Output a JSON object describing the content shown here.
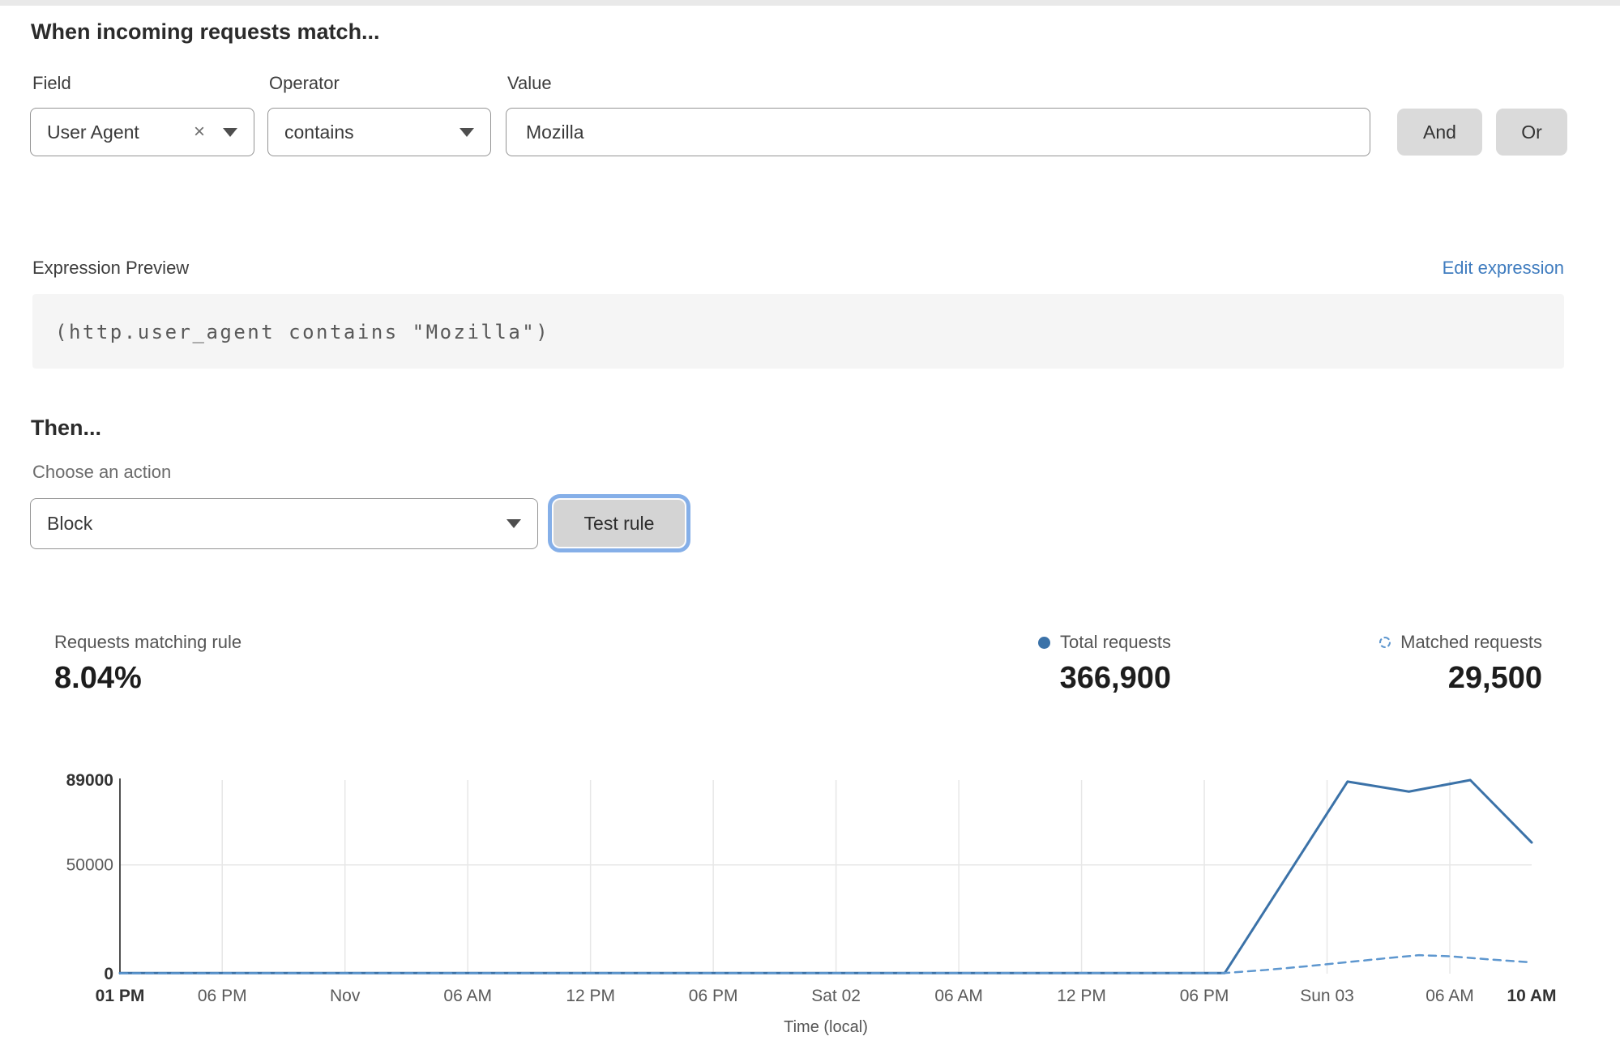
{
  "rule_builder": {
    "heading": "When incoming requests match...",
    "field": {
      "label": "Field",
      "value": "User Agent"
    },
    "operator": {
      "label": "Operator",
      "value": "contains"
    },
    "value": {
      "label": "Value",
      "value": "Mozilla"
    },
    "and_label": "And",
    "or_label": "Or"
  },
  "expression": {
    "label": "Expression Preview",
    "edit_link": "Edit expression",
    "code": "(http.user_agent contains \"Mozilla\")"
  },
  "action": {
    "heading": "Then...",
    "choose_label": "Choose an action",
    "selected": "Block",
    "test_button": "Test rule"
  },
  "stats": {
    "matching": {
      "label": "Requests matching rule",
      "value": "8.04%"
    },
    "total": {
      "label": "Total requests",
      "value": "366,900"
    },
    "matched": {
      "label": "Matched requests",
      "value": "29,500"
    }
  },
  "colors": {
    "link": "#3f7cbf",
    "total_line": "#3b72a8",
    "matched_line": "#5e97cf",
    "gridline": "#e7e7e7",
    "axis": "#4f4f4f"
  },
  "chart_data": {
    "type": "line",
    "xlabel": "Time (local)",
    "ylabel": "",
    "ylim": [
      0,
      89000
    ],
    "x_hours_range": [
      0,
      69
    ],
    "grid": true,
    "legend_position": "top-right",
    "yticks": [
      {
        "v": 0,
        "label": "0",
        "bold": true
      },
      {
        "v": 50000,
        "label": "50000",
        "bold": false
      },
      {
        "v": 89000,
        "label": "89000",
        "bold": true
      }
    ],
    "xticks": [
      {
        "h": 0,
        "label": "01 PM",
        "bold": true
      },
      {
        "h": 5,
        "label": "06 PM",
        "bold": false
      },
      {
        "h": 11,
        "label": "Nov",
        "bold": false
      },
      {
        "h": 17,
        "label": "06 AM",
        "bold": false
      },
      {
        "h": 23,
        "label": "12 PM",
        "bold": false
      },
      {
        "h": 29,
        "label": "06 PM",
        "bold": false
      },
      {
        "h": 35,
        "label": "Sat 02",
        "bold": false
      },
      {
        "h": 41,
        "label": "06 AM",
        "bold": false
      },
      {
        "h": 47,
        "label": "12 PM",
        "bold": false
      },
      {
        "h": 53,
        "label": "06 PM",
        "bold": false
      },
      {
        "h": 59,
        "label": "Sun 03",
        "bold": false
      },
      {
        "h": 65,
        "label": "06 AM",
        "bold": false
      },
      {
        "h": 69,
        "label": "10 AM",
        "bold": true
      }
    ],
    "series": [
      {
        "name": "Total requests",
        "style": "solid",
        "color": "#3b72a8",
        "points": [
          [
            0,
            300
          ],
          [
            54,
            300
          ],
          [
            60,
            88300
          ],
          [
            63,
            83700
          ],
          [
            66,
            89000
          ],
          [
            69,
            60300
          ]
        ]
      },
      {
        "name": "Matched requests",
        "style": "dashed",
        "color": "#5e97cf",
        "points": [
          [
            0,
            150
          ],
          [
            54,
            300
          ],
          [
            56,
            1700
          ],
          [
            58,
            3400
          ],
          [
            60,
            5300
          ],
          [
            62,
            7200
          ],
          [
            63.5,
            8500
          ],
          [
            65,
            8000
          ],
          [
            67,
            6500
          ],
          [
            69,
            5200
          ]
        ]
      }
    ]
  }
}
